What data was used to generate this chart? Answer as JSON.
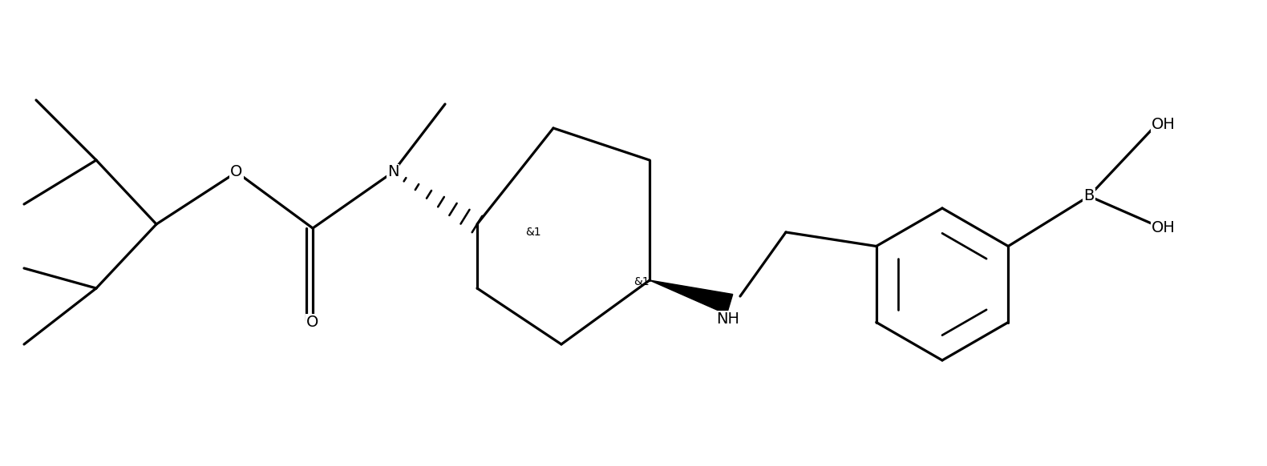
{
  "bg_color": "#ffffff",
  "line_color": "#000000",
  "line_width": 2.3,
  "font_size": 14,
  "figsize": [
    15.8,
    5.82
  ],
  "dpi": 100,
  "xlim": [
    0,
    15.8
  ],
  "ylim": [
    0,
    5.82
  ]
}
